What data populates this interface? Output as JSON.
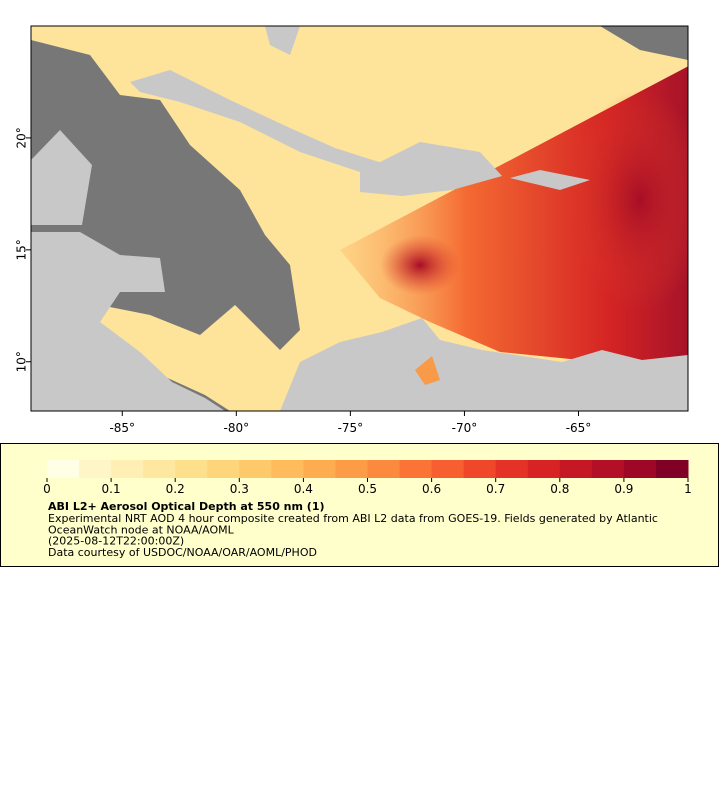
{
  "chart_data": {
    "type": "map",
    "xlim": [
      -89,
      -60.2
    ],
    "ylim": [
      7.8,
      25
    ],
    "xticks": [
      {
        "value": -85,
        "label": "-85°"
      },
      {
        "value": -80,
        "label": "-80°"
      },
      {
        "value": -75,
        "label": "-75°"
      },
      {
        "value": -70,
        "label": "-70°"
      },
      {
        "value": -65,
        "label": "-65°"
      }
    ],
    "yticks": [
      {
        "value": 10,
        "label": "10°"
      },
      {
        "value": 15,
        "label": "15°"
      },
      {
        "value": 20,
        "label": "20°"
      }
    ],
    "colorbar": {
      "lim": [
        0,
        1
      ],
      "ticks": [
        0,
        0.1,
        0.2,
        0.3,
        0.4,
        0.5,
        0.6,
        0.7,
        0.8,
        0.9,
        1
      ],
      "colors": [
        "#ffffe6",
        "#fff6c8",
        "#ffefb4",
        "#fee8a0",
        "#fedf8c",
        "#fed57a",
        "#fec96a",
        "#febc5c",
        "#fdad50",
        "#fd9c46",
        "#fc8a3e",
        "#fb7436",
        "#f75e30",
        "#f0472a",
        "#e53226",
        "#d82324",
        "#c61824",
        "#b30f26",
        "#9e0826",
        "#800026"
      ]
    },
    "title": "ABI L2+ Aerosol Optical Depth at 550 nm (1)",
    "description": [
      "Experimental NRT AOD 4 hour composite created from ABI L2 data from GOES-19. Fields generated by Atlantic",
      "OceanWatch node at NOAA/AOML",
      "(2025-08-12T22:00:00Z)",
      "Data courtesy of USDOC/NOAA/OAR/AOML/PHOD"
    ]
  }
}
